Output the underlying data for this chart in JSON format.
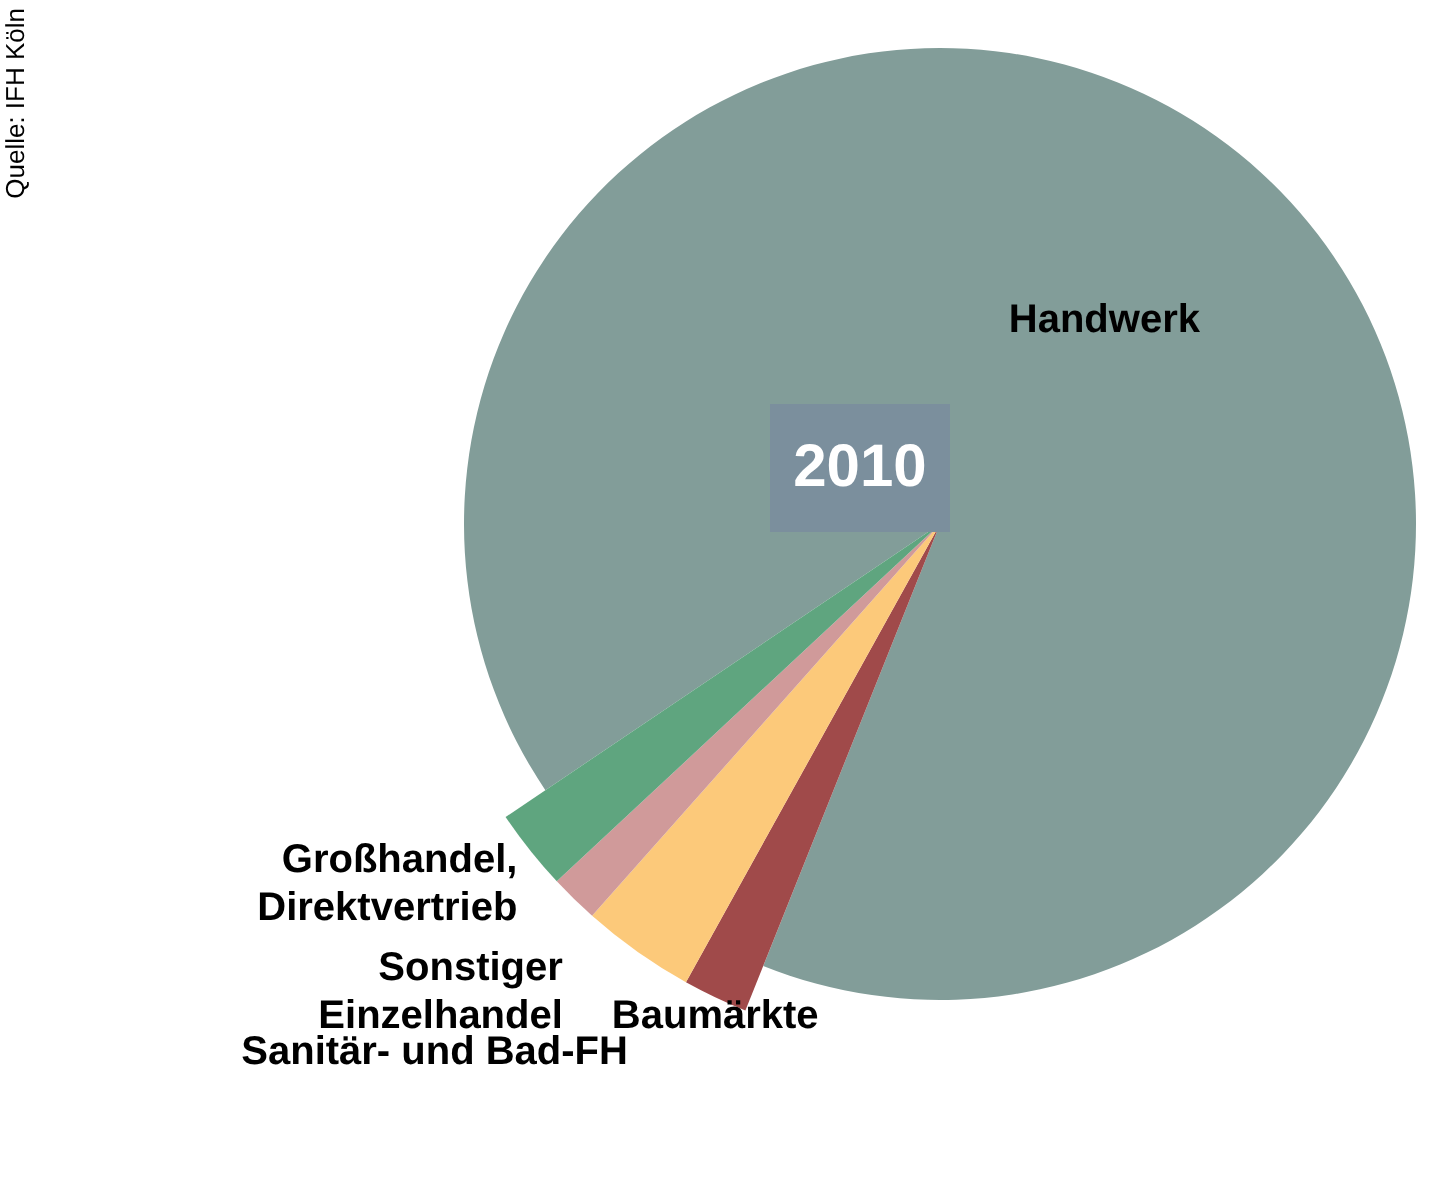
{
  "chart_data": {
    "type": "pie",
    "title": "2010",
    "categories": [
      "Handwerk",
      "Baumärkte",
      "Sanitär- und Bad-FH",
      "Sonstiger Einzelhandel",
      "Großhandel, Direktvertrieb"
    ],
    "values": [
      90.5,
      2,
      3.5,
      1.5,
      2.5
    ],
    "colors": [
      "#829d99",
      "#a04a4a",
      "#fcc97a",
      "#d09a9a",
      "#5fa57f"
    ],
    "annotations": [
      "Quelle: IFH Köln"
    ]
  }
}
